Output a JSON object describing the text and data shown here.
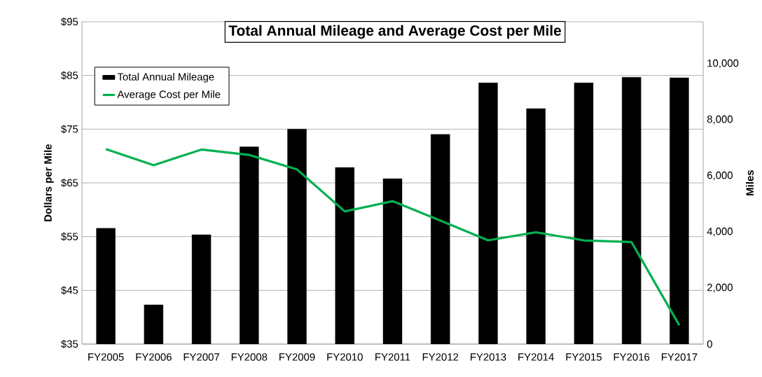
{
  "chart_data": {
    "type": "bar",
    "title": "Total Annual Mileage and Average Cost per Mile",
    "ylabel": "Dollars per Mile",
    "y2label": "Miles",
    "categories": [
      "FY2005",
      "FY2006",
      "FY2007",
      "FY2008",
      "FY2009",
      "FY2010",
      "FY2011",
      "FY2012",
      "FY2013",
      "FY2014",
      "FY2015",
      "FY2016",
      "FY2017"
    ],
    "series": [
      {
        "name": "Total Annual Mileage",
        "axis": "y2",
        "color": "#000000",
        "values": [
          4130,
          1400,
          3900,
          7040,
          7670,
          6300,
          5900,
          7480,
          9320,
          8400,
          9320,
          9520,
          9500
        ]
      },
      {
        "name": "Average Cost per Mile",
        "type": "line",
        "color": "#00b050",
        "values": [
          71.3,
          68.3,
          71.2,
          70.2,
          67.5,
          59.7,
          61.6,
          58.0,
          54.3,
          55.8,
          54.3,
          54.0,
          38.5
        ]
      }
    ],
    "ylim": [
      35,
      95
    ],
    "yticks": [
      {
        "value": 35,
        "label": "$35"
      },
      {
        "value": 45,
        "label": "$45"
      },
      {
        "value": 55,
        "label": "$55"
      },
      {
        "value": 65,
        "label": "$65"
      },
      {
        "value": 75,
        "label": "$75"
      },
      {
        "value": 85,
        "label": "$85"
      },
      {
        "value": 95,
        "label": "$95"
      }
    ],
    "y2lim": [
      0,
      11500
    ],
    "y2ticks": [
      0,
      {
        "value": 2000,
        "label": "2,000"
      },
      {
        "value": 4000,
        "label": "4,000"
      },
      {
        "value": 6000,
        "label": "6,000"
      },
      {
        "value": 8000,
        "label": "8,000"
      },
      {
        "value": 10000,
        "label": "10,000"
      }
    ],
    "grid": "y",
    "legend": "top left"
  }
}
